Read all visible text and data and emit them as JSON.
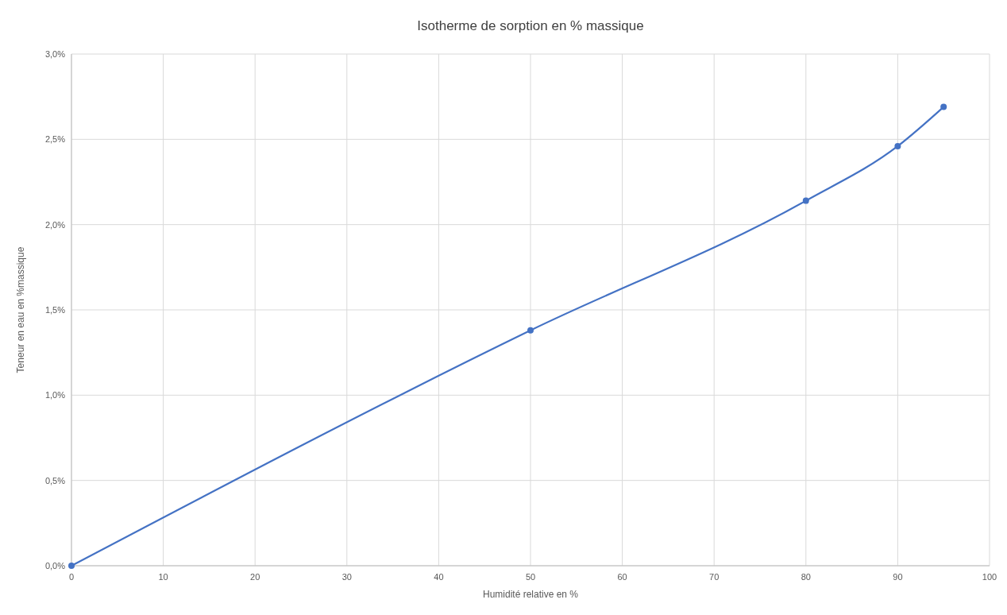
{
  "chart_data": {
    "type": "line",
    "title": "Isotherme de sorption en % massique",
    "xlabel": "Humidité relative en %",
    "ylabel": "Teneur en eau en %massique",
    "x": [
      0,
      50,
      80,
      90,
      95
    ],
    "series": [
      {
        "color": "#4472c4",
        "values": [
          0,
          1.38,
          2.14,
          2.46,
          2.69
        ]
      }
    ],
    "xlim": [
      0,
      100
    ],
    "xticks": [
      0,
      10,
      20,
      30,
      40,
      50,
      60,
      70,
      80,
      90,
      100
    ],
    "ylim": [
      0,
      3
    ],
    "yticks": [
      {
        "value": 0,
        "label": "0,0%"
      },
      {
        "value": 0.5,
        "label": "0,5%"
      },
      {
        "value": 1,
        "label": "1,0%"
      },
      {
        "value": 1.5,
        "label": "1,5%"
      },
      {
        "value": 2,
        "label": "2,0%"
      },
      {
        "value": 2.5,
        "label": "2,5%"
      },
      {
        "value": 3,
        "label": "3,0%"
      }
    ],
    "grid": true,
    "marker": "circle",
    "line_style": "solid"
  }
}
